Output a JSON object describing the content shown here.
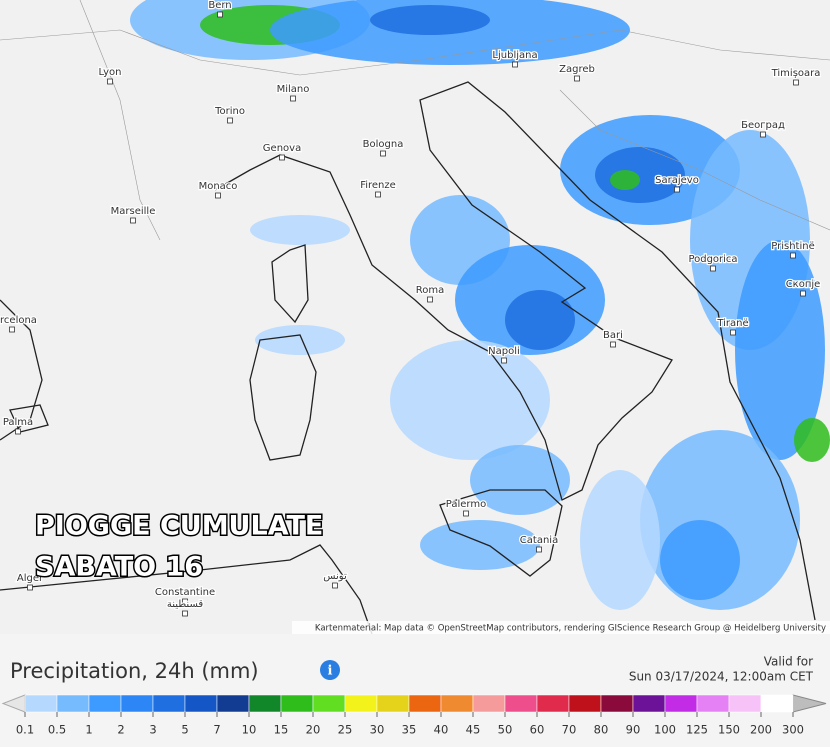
{
  "map": {
    "cities": [
      "Bern",
      "Lyon",
      "Milano",
      "Torino",
      "Genova",
      "Bologna",
      "Monaco",
      "Firenze",
      "Marseille",
      "Ljubljana",
      "Zagreb",
      "Timișoara",
      "Београд",
      "Sarajevo",
      "Podgorica",
      "Prishtinë",
      "Скопје",
      "Roma",
      "Bari",
      "Tiranë",
      "Napoli",
      "Palma",
      "Barcelona",
      "Palermo",
      "Catania",
      "Alger",
      "Constantine",
      "قسنطينة",
      "تونس"
    ],
    "overlay_title": [
      "PIOGGE CUMULATE",
      "SABATO 16"
    ],
    "attribution": "Kartenmaterial: Map data © OpenStreetMap contributors, rendering GIScience Research Group @ Heidelberg University"
  },
  "legend": {
    "title": "Precipitation, 24h (mm)",
    "valid_label": "Valid for",
    "valid_time": "Sun 03/17/2024, 12:00am CET",
    "levels": [
      0.1,
      0.5,
      1,
      2,
      3,
      5,
      7,
      10,
      15,
      20,
      25,
      30,
      35,
      40,
      45,
      50,
      60,
      70,
      80,
      90,
      100,
      125,
      150,
      200,
      300
    ],
    "colors": [
      "#b5d8ff",
      "#77bbff",
      "#3d9bff",
      "#2c86f5",
      "#1f6fe0",
      "#1456c6",
      "#123b92",
      "#12872a",
      "#2fbd1c",
      "#62de22",
      "#f3f31b",
      "#e5d21a",
      "#ec6510",
      "#f08a30",
      "#f59b9b",
      "#ee4f8c",
      "#e12b4d",
      "#bf111c",
      "#8a0b3b",
      "#6c1299",
      "#c22ce6",
      "#e581f4",
      "#f6c2f8",
      "#ffffff"
    ]
  }
}
